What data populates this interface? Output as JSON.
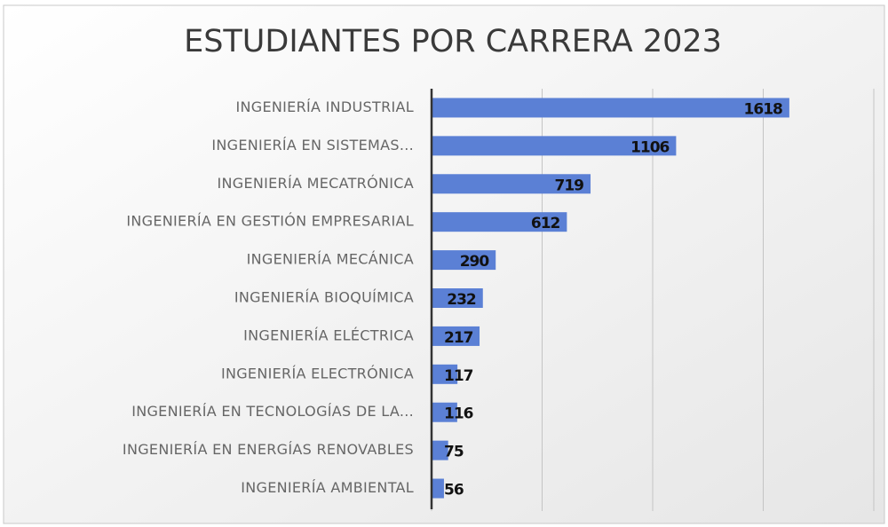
{
  "chart_data": {
    "type": "bar",
    "orientation": "horizontal",
    "title": "ESTUDIANTES POR CARRERA 2023",
    "categories": [
      "INGENIERÍA INDUSTRIAL",
      "INGENIERÍA EN SISTEMAS...",
      "INGENIERÍA MECATRÓNICA",
      "INGENIERÍA EN GESTIÓN EMPRESARIAL",
      "INGENIERÍA MECÁNICA",
      "INGENIERÍA BIOQUÍMICA",
      "INGENIERÍA ELÉCTRICA",
      "INGENIERÍA ELECTRÓNICA",
      "INGENIERÍA EN TECNOLOGÍAS DE LA...",
      "INGENIERÍA EN ENERGÍAS RENOVABLES",
      "INGENIERÍA AMBIENTAL"
    ],
    "values": [
      1618,
      1106,
      719,
      612,
      290,
      232,
      217,
      117,
      116,
      75,
      56
    ],
    "color": "#5b80d5",
    "xlim": [
      0,
      2000
    ],
    "xticks": [
      0,
      500,
      1000,
      1500,
      2000
    ],
    "grid": true
  }
}
